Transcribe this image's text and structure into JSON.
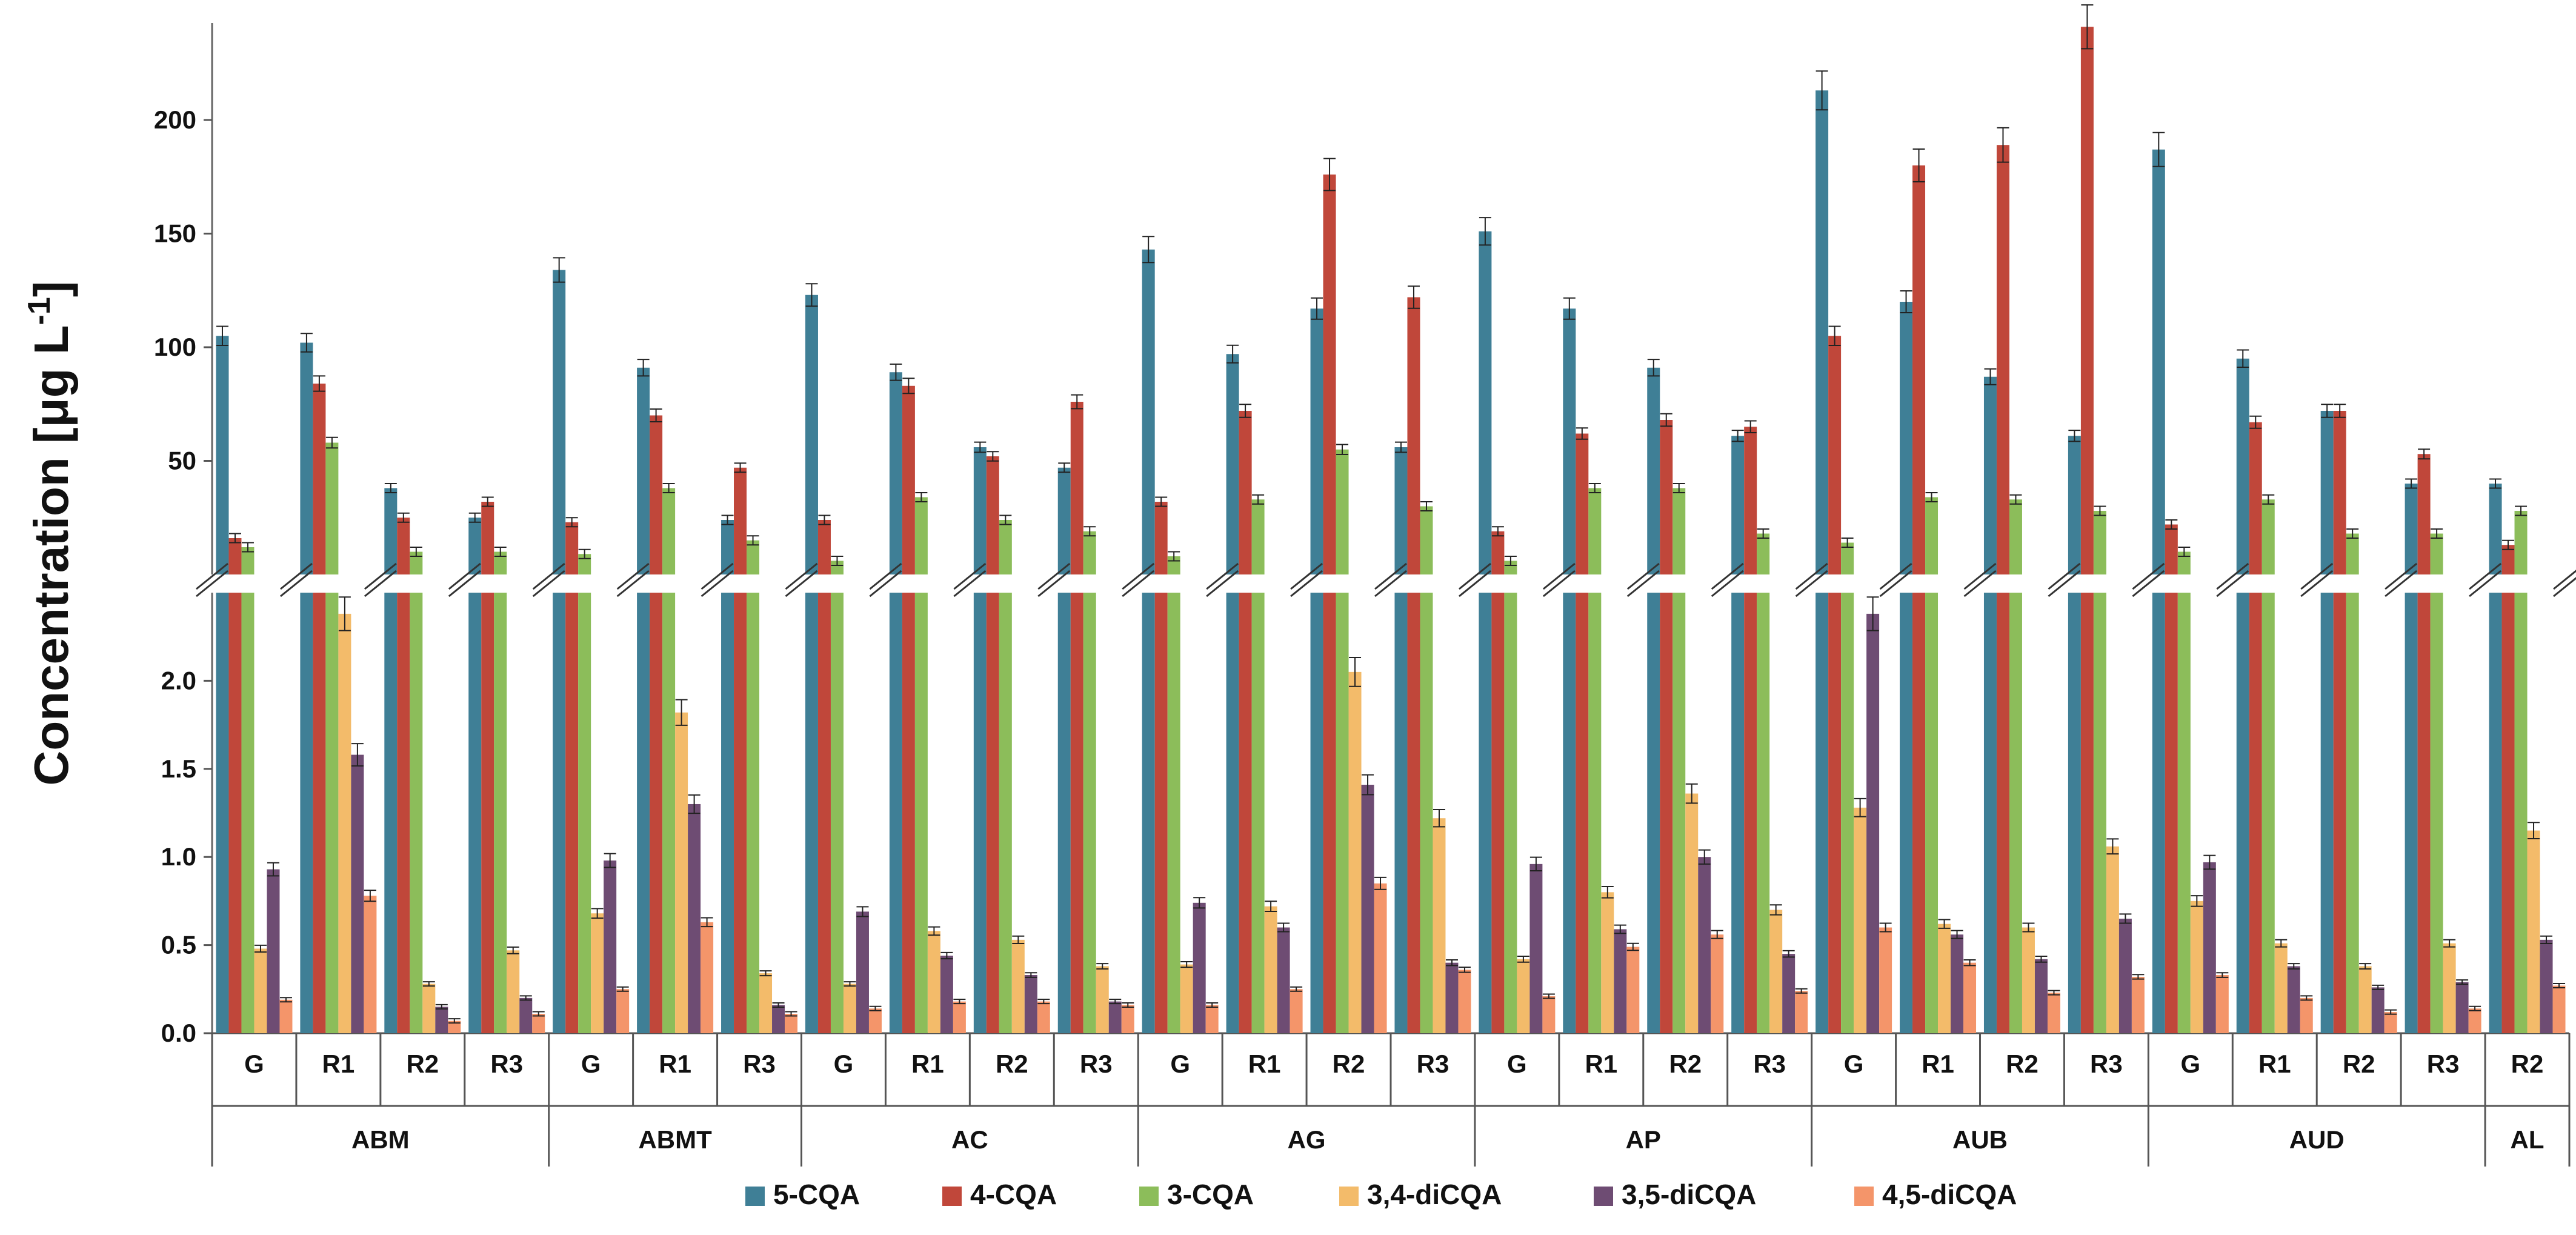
{
  "chart_data": {
    "type": "bar",
    "ylabel": "Concentration [μg L",
    "ylabel_sup": "-1",
    "ylabel_close": "]",
    "series": [
      {
        "name": "5-CQA",
        "color": "#3f7f96"
      },
      {
        "name": "4-CQA",
        "color": "#c0473a"
      },
      {
        "name": "3-CQA",
        "color": "#8cbd5a"
      },
      {
        "name": "3,4-diCQA",
        "color": "#f3bb6a"
      },
      {
        "name": "3,5-diCQA",
        "color": "#6e4c73"
      },
      {
        "name": "4,5-diCQA",
        "color": "#f4956a"
      }
    ],
    "upper_axis": {
      "ylim": [
        0,
        240
      ],
      "ticks": [
        50,
        100,
        150,
        200
      ]
    },
    "lower_axis": {
      "ylim": [
        0,
        2.5
      ],
      "ticks": [
        "0.0",
        "0.5",
        "1.0",
        "1.5",
        "2.0"
      ]
    },
    "groups": [
      {
        "label": "ABM",
        "categories": [
          {
            "label": "G",
            "values": [
              105,
              16,
              12,
              0.48,
              0.93,
              0.19
            ]
          },
          {
            "label": "R1",
            "values": [
              102,
              84,
              58,
              2.38,
              1.58,
              0.78
            ]
          },
          {
            "label": "R2",
            "values": [
              38,
              25,
              10,
              0.28,
              0.15,
              0.07
            ]
          },
          {
            "label": "R3",
            "values": [
              25,
              32,
              10,
              0.47,
              0.2,
              0.11
            ]
          }
        ]
      },
      {
        "label": "ABMT",
        "categories": [
          {
            "label": "G",
            "values": [
              134,
              23,
              9,
              0.68,
              0.98,
              0.25
            ]
          },
          {
            "label": "R1",
            "values": [
              91,
              70,
              38,
              1.82,
              1.3,
              0.63
            ]
          },
          {
            "label": "R3",
            "values": [
              24,
              47,
              15,
              0.34,
              0.16,
              0.11
            ]
          }
        ]
      },
      {
        "label": "AC",
        "categories": [
          {
            "label": "G",
            "values": [
              123,
              24,
              6,
              0.28,
              0.69,
              0.14
            ]
          },
          {
            "label": "R1",
            "values": [
              89,
              83,
              34,
              0.58,
              0.44,
              0.18
            ]
          },
          {
            "label": "R2",
            "values": [
              56,
              52,
              24,
              0.53,
              0.33,
              0.18
            ]
          },
          {
            "label": "R3",
            "values": [
              47,
              76,
              19,
              0.38,
              0.18,
              0.16
            ]
          }
        ]
      },
      {
        "label": "AG",
        "categories": [
          {
            "label": "G",
            "values": [
              143,
              32,
              8,
              0.39,
              0.74,
              0.16
            ]
          },
          {
            "label": "R1",
            "values": [
              97,
              72,
              33,
              0.72,
              0.6,
              0.25
            ]
          },
          {
            "label": "R2",
            "values": [
              117,
              176,
              55,
              2.05,
              1.41,
              0.85
            ]
          },
          {
            "label": "R3",
            "values": [
              56,
              122,
              30,
              1.22,
              0.4,
              0.36
            ]
          }
        ]
      },
      {
        "label": "AP",
        "categories": [
          {
            "label": "G",
            "values": [
              151,
              19,
              6,
              0.42,
              0.96,
              0.21
            ]
          },
          {
            "label": "R1",
            "values": [
              117,
              62,
              38,
              0.8,
              0.59,
              0.49
            ]
          },
          {
            "label": "R2",
            "values": [
              91,
              68,
              38,
              1.36,
              1.0,
              0.56
            ]
          },
          {
            "label": "R3",
            "values": [
              61,
              65,
              18,
              0.7,
              0.45,
              0.24
            ]
          }
        ]
      },
      {
        "label": "AUB",
        "categories": [
          {
            "label": "G",
            "values": [
              213,
              105,
              14,
              1.28,
              2.38,
              0.6
            ]
          },
          {
            "label": "R1",
            "values": [
              120,
              180,
              34,
              0.62,
              0.56,
              0.4
            ]
          },
          {
            "label": "R2",
            "values": [
              87,
              189,
              33,
              0.6,
              0.42,
              0.23
            ]
          },
          {
            "label": "R3",
            "values": [
              61,
              241,
              28,
              1.06,
              0.65,
              0.32
            ]
          }
        ]
      },
      {
        "label": "AUD",
        "categories": [
          {
            "label": "G",
            "values": [
              187,
              22,
              10,
              0.75,
              0.97,
              0.33
            ]
          },
          {
            "label": "R1",
            "values": [
              95,
              67,
              33,
              0.51,
              0.38,
              0.2
            ]
          },
          {
            "label": "R2",
            "values": [
              72,
              72,
              18,
              0.38,
              0.26,
              0.12
            ]
          },
          {
            "label": "R3",
            "values": [
              40,
              53,
              18,
              0.51,
              0.29,
              0.14
            ]
          }
        ]
      },
      {
        "label": "AL",
        "categories": [
          {
            "label": "R2",
            "values": [
              40,
              13,
              28,
              1.15,
              0.53,
              0.27
            ]
          }
        ]
      }
    ]
  }
}
